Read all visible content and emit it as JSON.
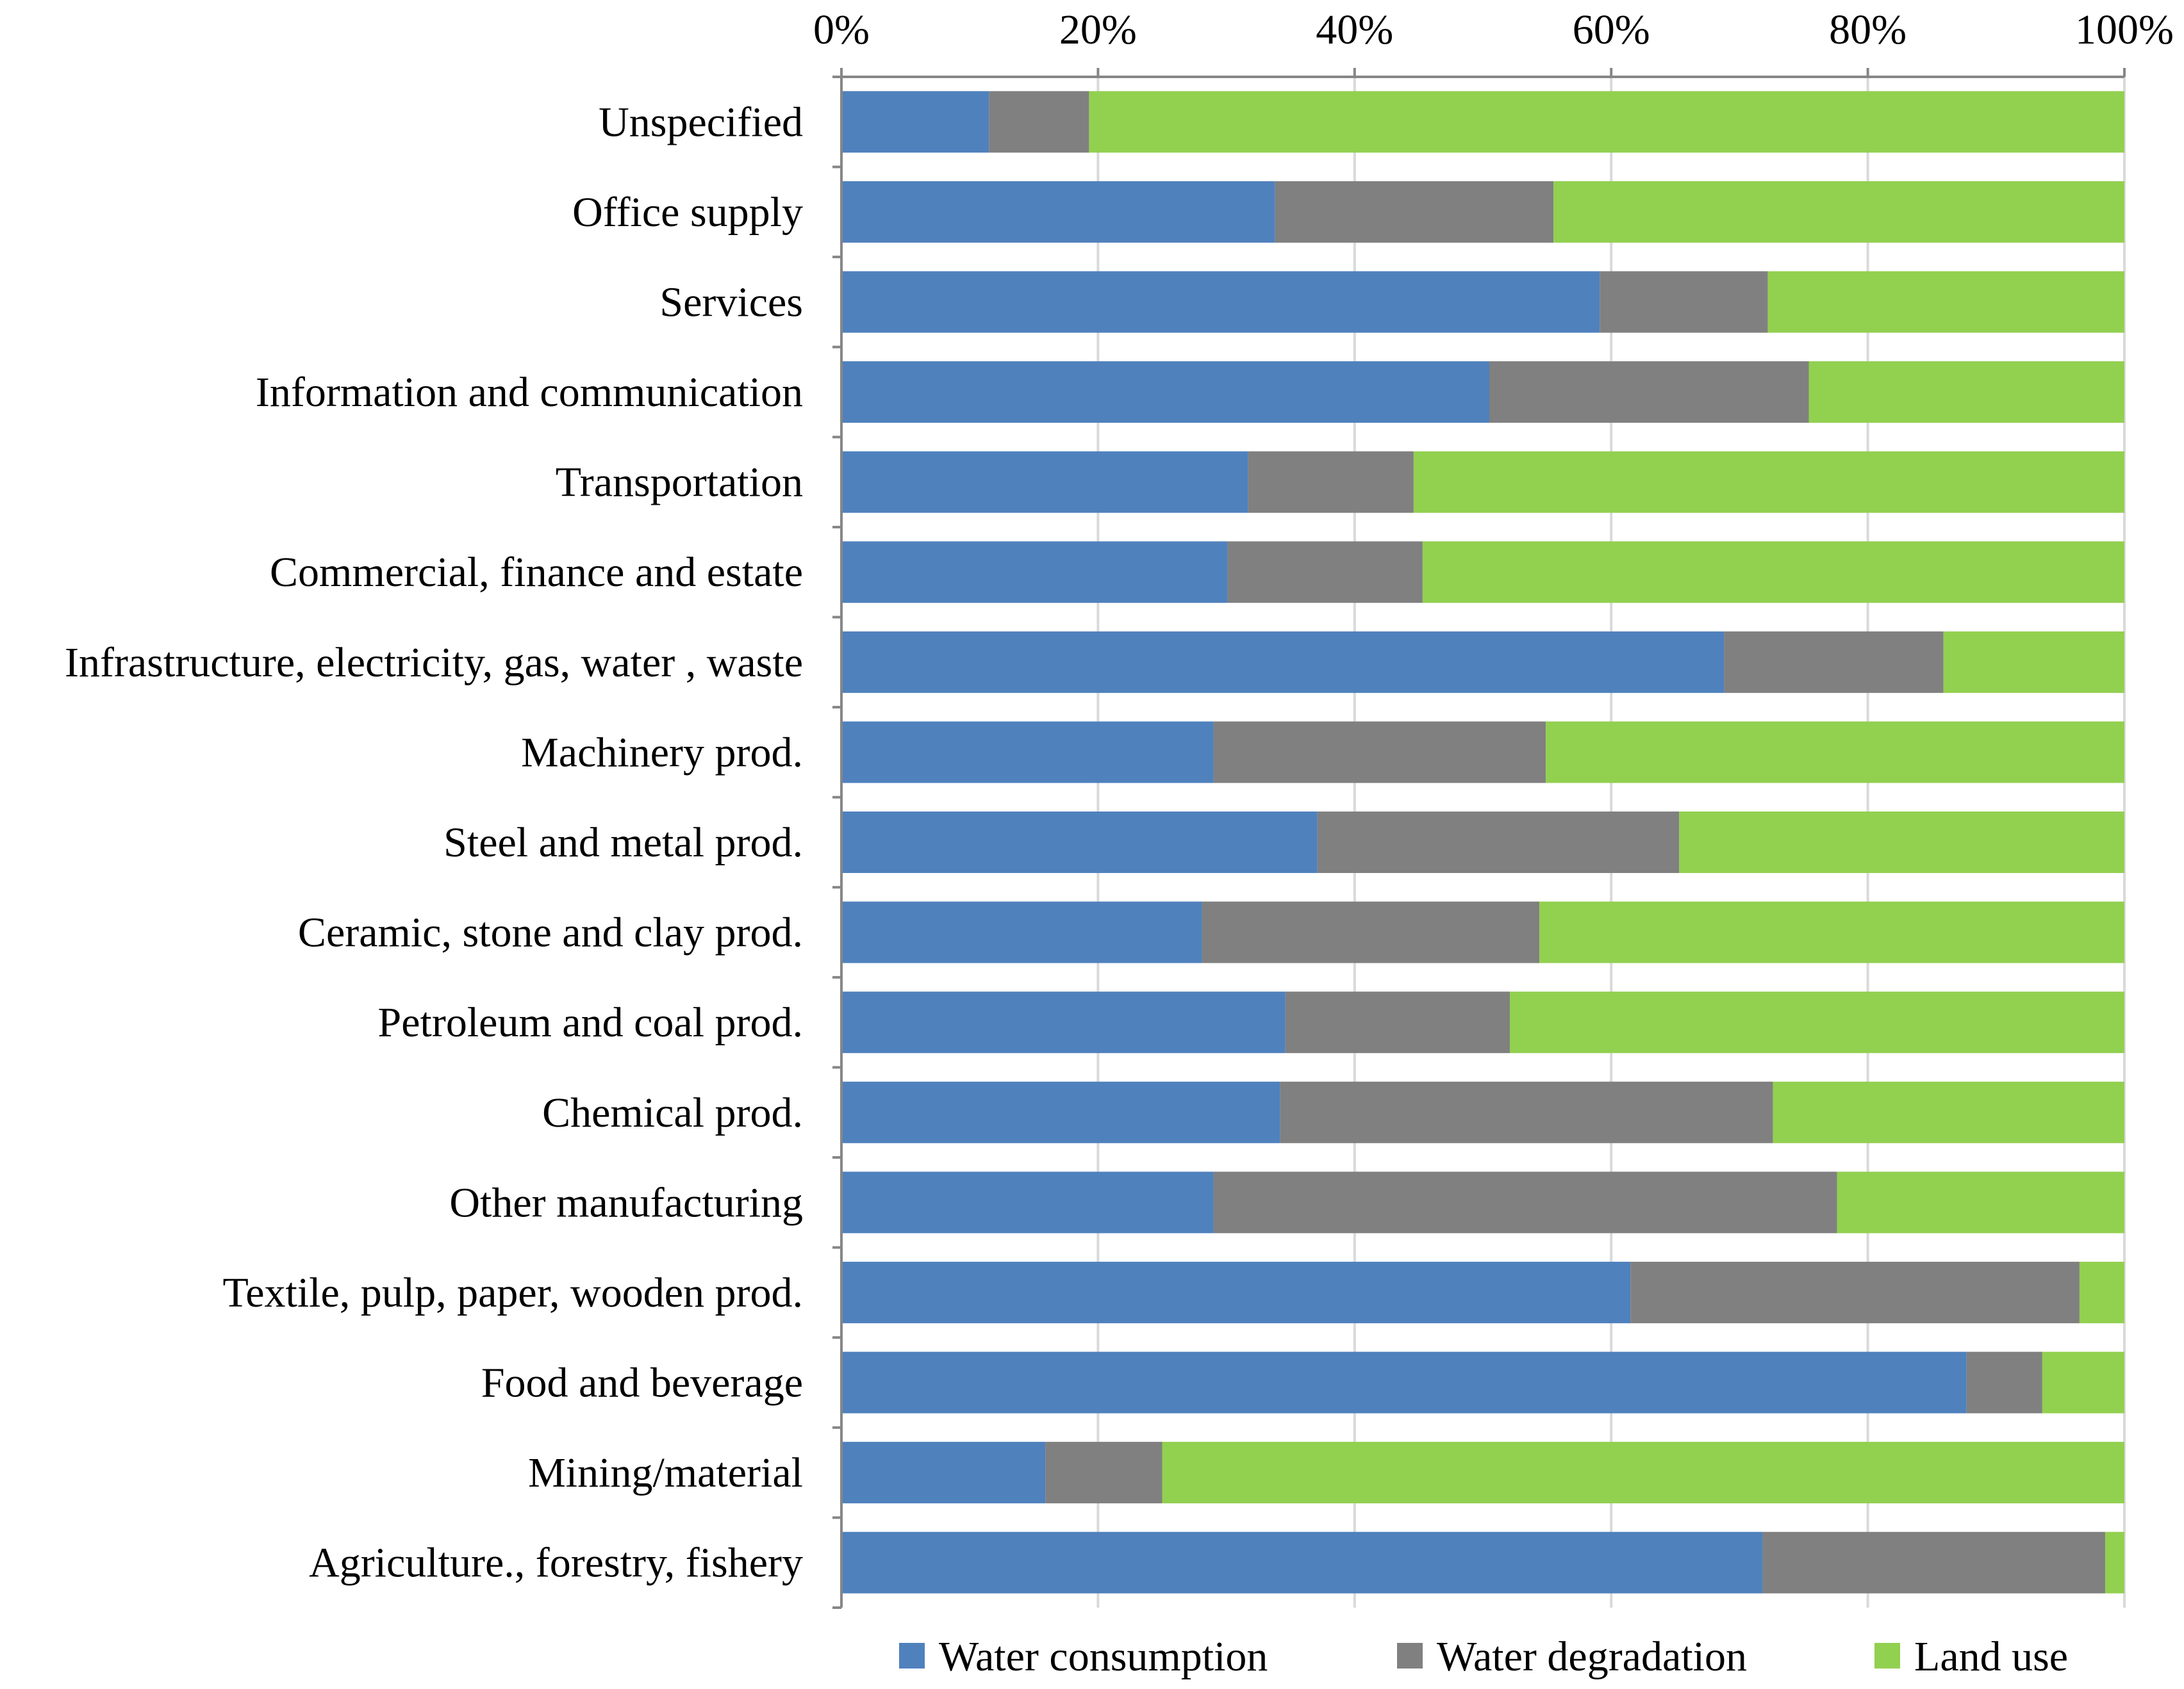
{
  "chart_data": {
    "type": "bar",
    "orientation": "horizontal",
    "stacked": "percent",
    "title": "",
    "xlabel": "",
    "ylabel": "",
    "xlim": [
      0,
      100
    ],
    "x_ticks": [
      "0%",
      "20%",
      "40%",
      "60%",
      "80%",
      "100%"
    ],
    "x_tick_values": [
      0,
      20,
      40,
      60,
      80,
      100
    ],
    "grid": true,
    "legend_position": "bottom",
    "categories": [
      "Unspecified",
      "Office supply",
      "Services",
      "Information and communication",
      "Transportation",
      "Commercial, finance and estate",
      "Infrastructure, electricity, gas, water , waste",
      "Machinery prod.",
      "Steel and metal prod.",
      "Ceramic, stone and clay prod.",
      "Petroleum and coal prod.",
      "Chemical prod.",
      "Other manufacturing",
      "Textile, pulp, paper, wooden prod.",
      "Food and beverage",
      "Mining/material",
      "Agriculture., forestry, fishery"
    ],
    "series": [
      {
        "name": "Water consumption",
        "color": "#4F81BD",
        "values": [
          11.5,
          33.8,
          59.1,
          50.5,
          31.7,
          30.1,
          68.8,
          29.0,
          37.1,
          28.1,
          34.6,
          34.2,
          29.0,
          61.5,
          87.7,
          15.9,
          71.8
        ]
      },
      {
        "name": "Water degradation",
        "color": "#808080",
        "values": [
          7.8,
          21.7,
          13.1,
          24.9,
          12.9,
          15.2,
          17.1,
          25.9,
          28.2,
          26.3,
          17.5,
          38.4,
          48.6,
          35.0,
          5.9,
          9.1,
          26.7
        ]
      },
      {
        "name": "Land use",
        "color": "#92D050",
        "values": [
          80.7,
          44.5,
          27.8,
          24.6,
          55.4,
          54.7,
          14.1,
          45.1,
          34.7,
          45.6,
          47.9,
          27.4,
          22.4,
          3.5,
          6.4,
          75.0,
          1.5
        ]
      }
    ]
  }
}
